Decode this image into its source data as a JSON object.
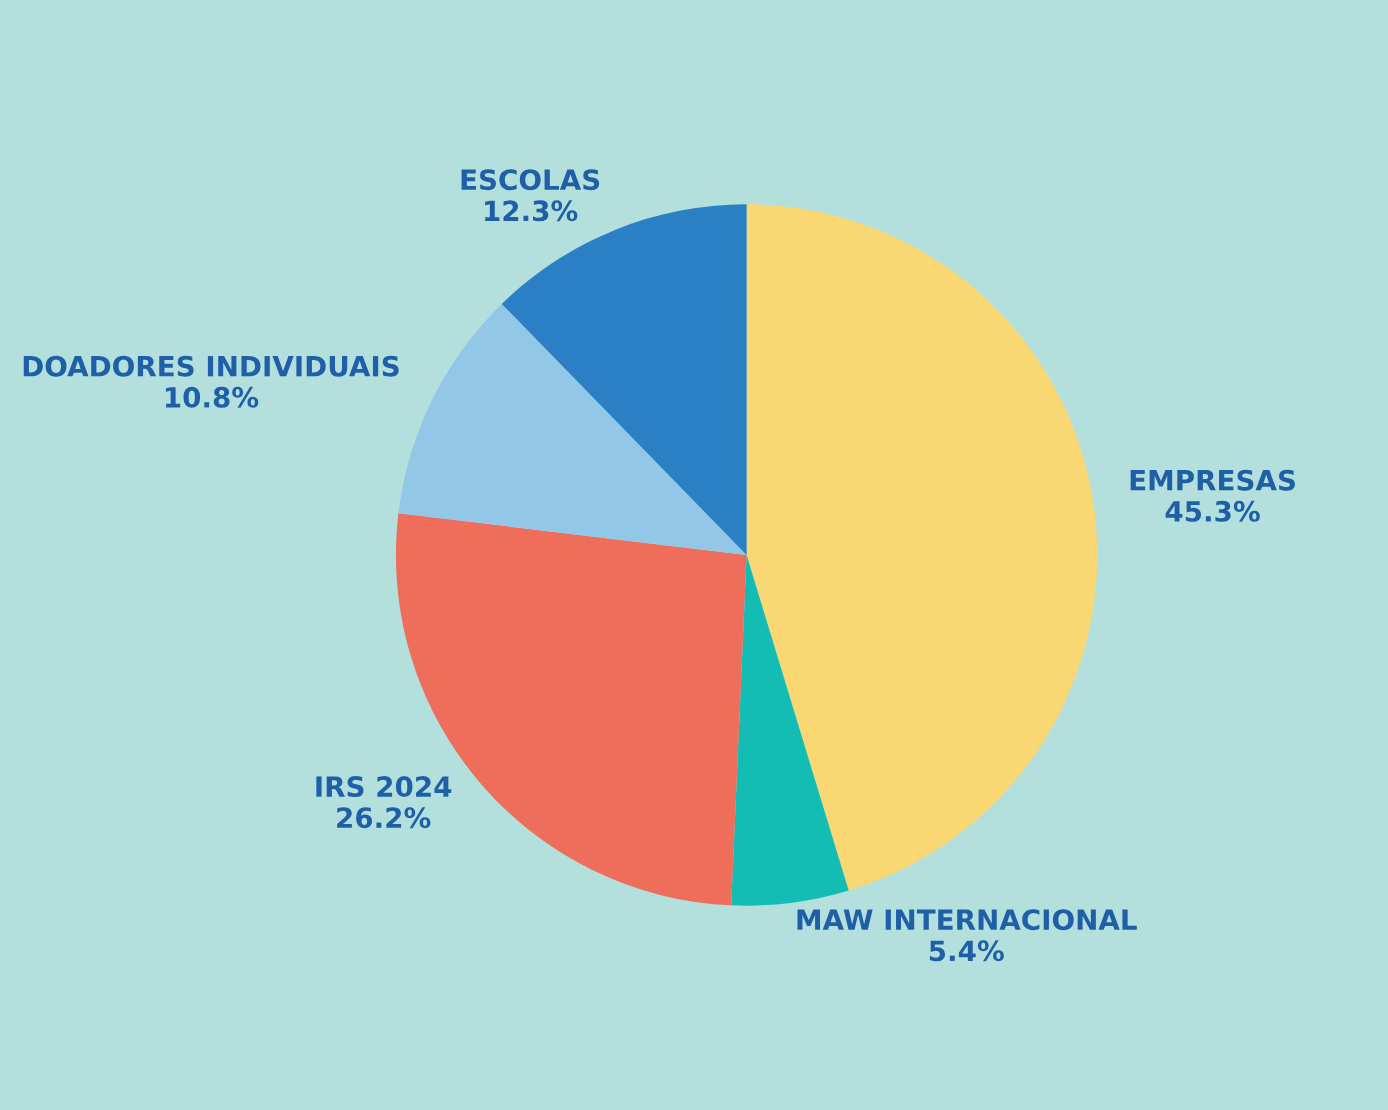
{
  "chart_data": {
    "type": "pie",
    "categories": [
      "EMPRESAS",
      "MAW INTERNACIONAL",
      "IRS 2024",
      "DOADORES INDIVIDUAIS",
      "ESCOLAS"
    ],
    "values": [
      45.3,
      5.4,
      26.2,
      10.8,
      12.3
    ],
    "value_labels": [
      "45.3%",
      "5.4%",
      "26.2%",
      "10.8%",
      "12.3%"
    ],
    "colors": [
      "#f9d773",
      "#14bdb4",
      "#ee6d5b",
      "#93c7e8",
      "#2b7fc4"
    ]
  }
}
